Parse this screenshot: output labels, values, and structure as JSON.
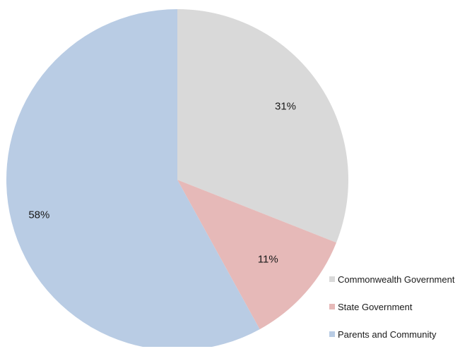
{
  "chart_data": {
    "type": "pie",
    "title": "",
    "slices": [
      {
        "label": "Commonwealth Government",
        "value": 31,
        "display": "31%",
        "color": "#d9d9d9"
      },
      {
        "label": "State Government",
        "value": 11,
        "display": "11%",
        "color": "#e6b9b8"
      },
      {
        "label": "Parents and Community",
        "value": 58,
        "display": "58%",
        "color": "#b9cce4"
      }
    ],
    "start_angle": "12 o'clock",
    "direction": "clockwise",
    "legend_position": "bottom-right"
  }
}
